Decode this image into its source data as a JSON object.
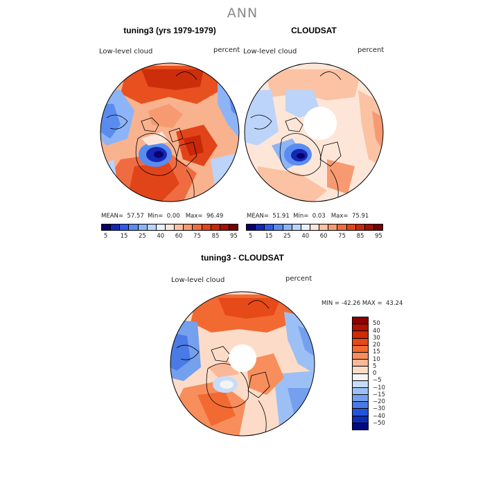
{
  "figure": {
    "season": "ANN"
  },
  "chart_data": [
    {
      "type": "heatmap",
      "projection": "north polar stereographic",
      "title": "tuning3 (yrs 1979-1979)",
      "field_label": "Low-level cloud",
      "units": "percent",
      "stats": {
        "mean_label": "MEAN=",
        "mean": "57.57",
        "min_label": "Min=",
        "min": "0.00",
        "max_label": "Max=",
        "max": "96.49"
      },
      "colorbar_levels": [
        "5",
        "15",
        "25",
        "40",
        "60",
        "75",
        "85",
        "95"
      ],
      "colorbar_colors": [
        "#08006e",
        "#1428b4",
        "#2e5ce6",
        "#5a8cf0",
        "#8cb4f7",
        "#bcd4fa",
        "#e8f0fe",
        "#fde6d8",
        "#fbc2a4",
        "#f79a72",
        "#ef6c42",
        "#e24419",
        "#c82808",
        "#a01004",
        "#780000"
      ]
    },
    {
      "type": "heatmap",
      "projection": "north polar stereographic",
      "title": "CLOUDSAT",
      "field_label": "Low-level cloud",
      "units": "percent",
      "stats": {
        "mean_label": "MEAN=",
        "mean": "51.91",
        "min_label": "Min=",
        "min": "0.03",
        "max_label": "Max=",
        "max": "75.91"
      },
      "colorbar_levels": [
        "5",
        "15",
        "25",
        "40",
        "60",
        "75",
        "85",
        "95"
      ],
      "colorbar_colors": [
        "#08006e",
        "#1428b4",
        "#2e5ce6",
        "#5a8cf0",
        "#8cb4f7",
        "#bcd4fa",
        "#e8f0fe",
        "#fde6d8",
        "#fbc2a4",
        "#f79a72",
        "#ef6c42",
        "#e24419",
        "#c82808",
        "#a01004",
        "#780000"
      ]
    },
    {
      "type": "heatmap",
      "projection": "north polar stereographic",
      "title": "tuning3 - CLOUDSAT",
      "field_label": "Low-level cloud",
      "units": "percent",
      "stats": {
        "text": "MIN = -42.26 MAX =  43.24",
        "min": "-42.26",
        "max": "43.24"
      },
      "colorbar_levels": [
        "50",
        "40",
        "30",
        "20",
        "15",
        "10",
        "5",
        "0",
        "−5",
        "−10",
        "−15",
        "−20",
        "−30",
        "−40",
        "−50"
      ],
      "colorbar_colors": [
        "#8b0000",
        "#b01000",
        "#d02a06",
        "#e64a18",
        "#f26a32",
        "#f78e5c",
        "#fab898",
        "#fcdcc8",
        "#f4f4f4",
        "#c6dcfa",
        "#9cc0f6",
        "#74a0ee",
        "#4a7ae6",
        "#2452d8",
        "#0c2cb8",
        "#000a80"
      ]
    }
  ]
}
